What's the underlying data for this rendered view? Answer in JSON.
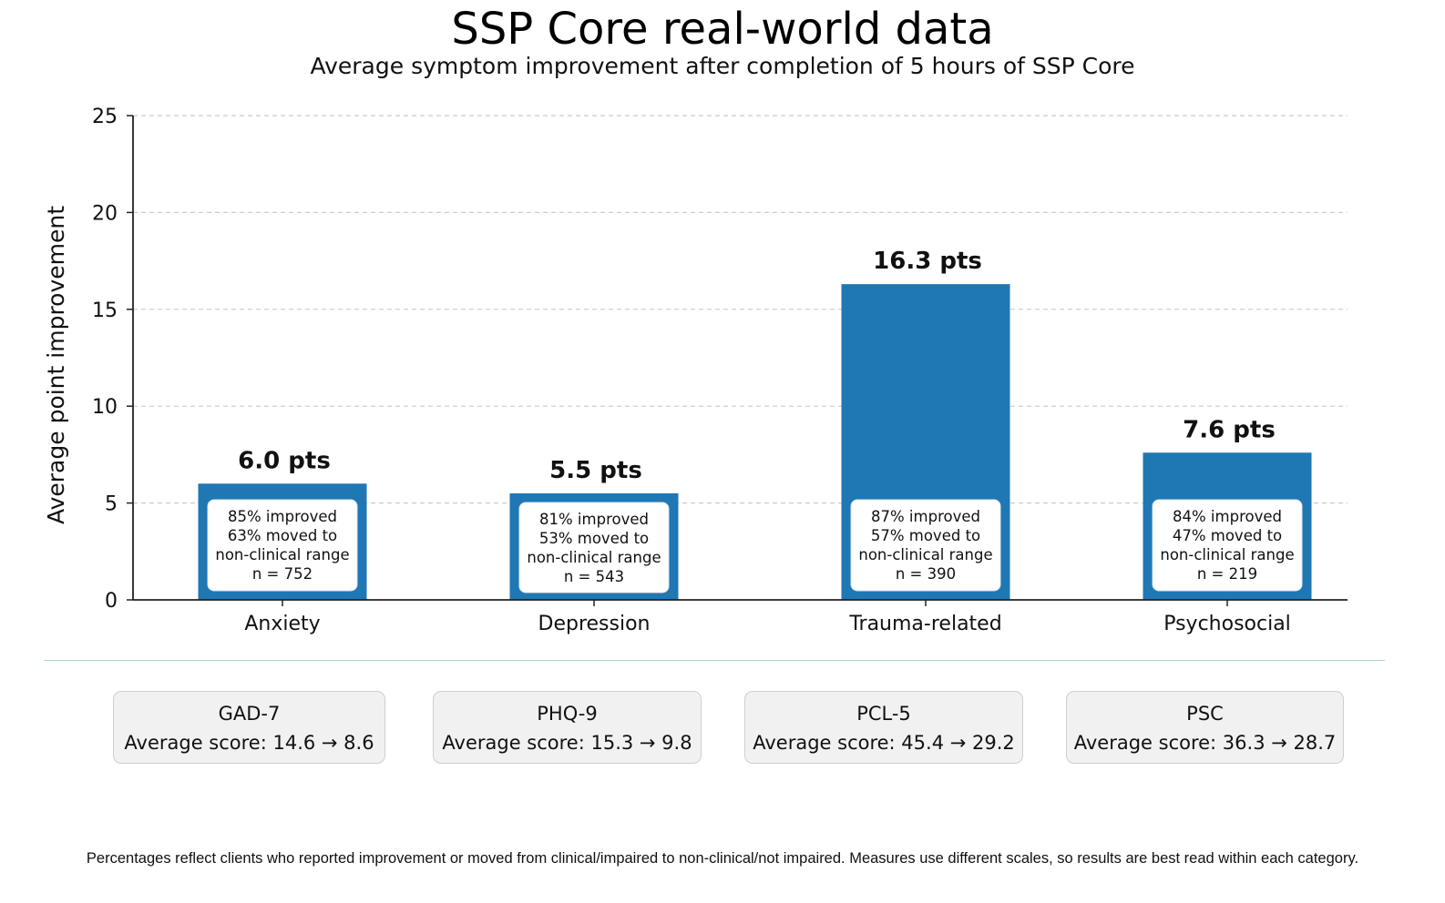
{
  "header": {
    "title": "SSP Core real-world data",
    "subtitle": "Average symptom improvement after completion of 5 hours of SSP Core"
  },
  "chart_data": {
    "type": "bar",
    "title": "SSP Core real-world data",
    "subtitle": "Average symptom improvement after completion of 5 hours of SSP Core",
    "xlabel": "",
    "ylabel": "Average point improvement",
    "ylim": [
      0,
      25
    ],
    "yticks": [
      0,
      5,
      10,
      15,
      20,
      25
    ],
    "grid": true,
    "legend": "none",
    "bar_color": "#1f77b4",
    "categories": [
      "Anxiety",
      "Depression",
      "Trauma-related",
      "Psychosocial"
    ],
    "values": [
      6.0,
      5.5,
      16.3,
      7.6
    ],
    "value_labels": [
      "6.0 pts",
      "5.5 pts",
      "16.3 pts",
      "7.6 pts"
    ],
    "annotations": [
      [
        "85% improved",
        "63% moved to",
        "non-clinical range",
        "n = 752"
      ],
      [
        "81% improved",
        "53% moved to",
        "non-clinical range",
        "n = 543"
      ],
      [
        "87% improved",
        "57% moved to",
        "non-clinical range",
        "n = 390"
      ],
      [
        "84% improved",
        "47% moved to",
        "non-clinical range",
        "n = 219"
      ]
    ]
  },
  "measures": [
    {
      "name": "GAD-7",
      "score": "Average score: 14.6 → 8.6"
    },
    {
      "name": "PHQ-9",
      "score": "Average score: 15.3 → 9.8"
    },
    {
      "name": "PCL-5",
      "score": "Average score: 45.4 → 29.2"
    },
    {
      "name": "PSC",
      "score": "Average score: 36.3 → 28.7"
    }
  ],
  "footnote": "Percentages reflect clients who reported improvement or moved from clinical/impaired to non-clinical/not impaired. Measures use different scales, so results are best read within each category."
}
